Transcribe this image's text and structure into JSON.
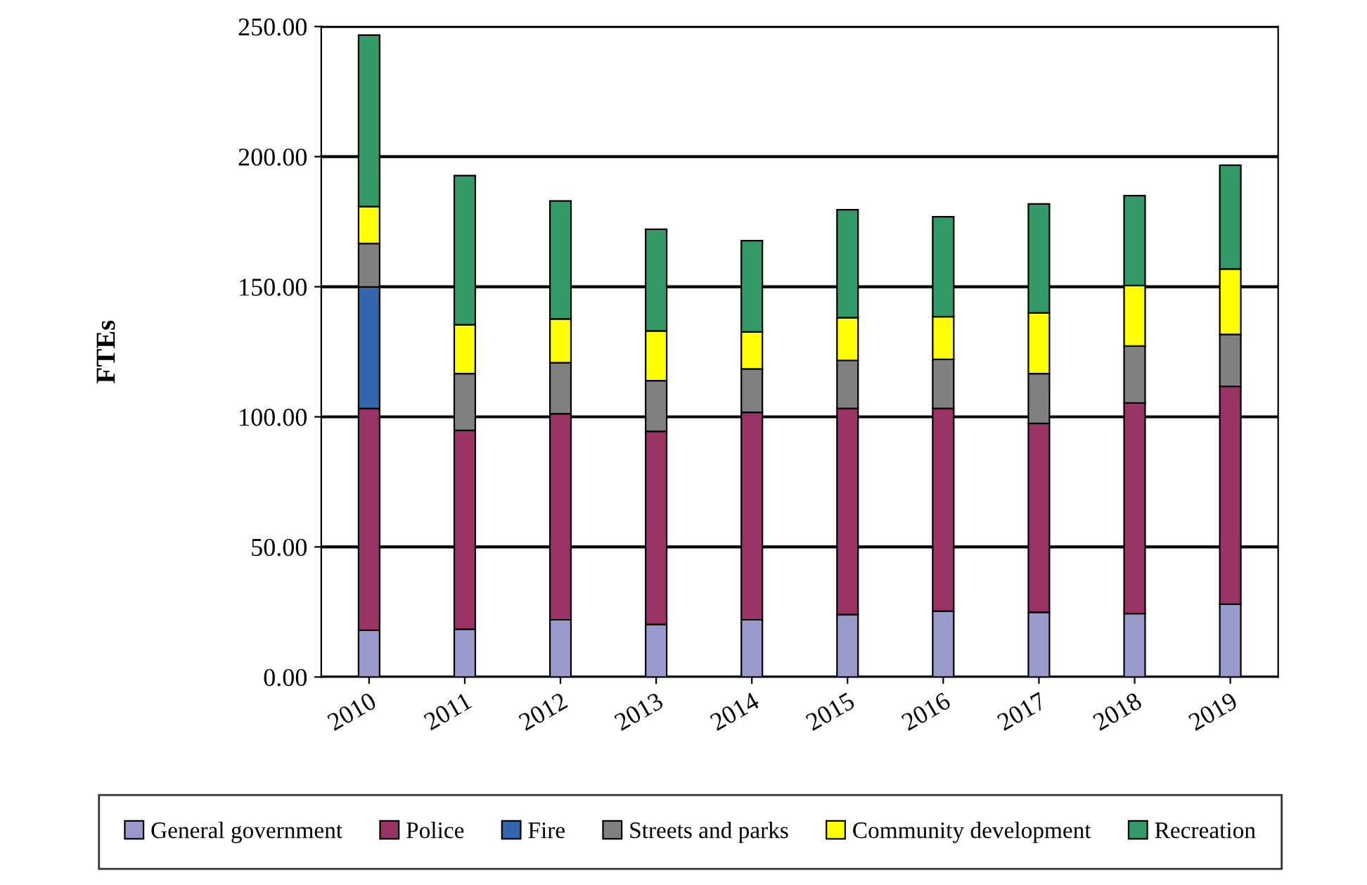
{
  "chart_data": {
    "type": "bar",
    "stacked": true,
    "ylabel": "FTEs",
    "categories": [
      "2010",
      "2011",
      "2012",
      "2013",
      "2014",
      "2015",
      "2016",
      "2017",
      "2018",
      "2019"
    ],
    "series": [
      {
        "name": "General government",
        "color": "#9999cc",
        "values": [
          18.0,
          18.4,
          22.0,
          20.2,
          22.0,
          24.0,
          25.3,
          24.9,
          24.4,
          28.0
        ]
      },
      {
        "name": "Police",
        "color": "#993366",
        "values": [
          85.2,
          76.4,
          79.2,
          74.2,
          79.7,
          79.2,
          77.9,
          72.6,
          80.9,
          83.7
        ]
      },
      {
        "name": "Fire",
        "color": "#3366aa",
        "values": [
          46.7,
          null,
          null,
          null,
          null,
          null,
          null,
          null,
          null,
          null
        ]
      },
      {
        "name": "Streets and parks",
        "color": "#808080",
        "values": [
          16.7,
          21.8,
          19.6,
          19.5,
          16.7,
          18.5,
          18.9,
          19.1,
          21.9,
          20.0
        ]
      },
      {
        "name": "Community development",
        "color": "#ffff00",
        "values": [
          14.2,
          18.8,
          16.8,
          19.1,
          14.2,
          16.4,
          16.4,
          23.3,
          23.3,
          25.1
        ]
      },
      {
        "name": "Recreation",
        "color": "#339966",
        "values": [
          65.9,
          57.3,
          45.4,
          39.1,
          35.1,
          41.5,
          38.4,
          41.9,
          34.5,
          39.9
        ]
      }
    ],
    "ylim": [
      0,
      250
    ],
    "yticks": [
      {
        "value": 0,
        "label": "0.00"
      },
      {
        "value": 50,
        "label": "50.00"
      },
      {
        "value": 100,
        "label": "100.00"
      },
      {
        "value": 150,
        "label": "150.00"
      },
      {
        "value": 200,
        "label": "200.00"
      },
      {
        "value": 250,
        "label": "250.00"
      }
    ],
    "grid": "y",
    "legend": "bottom"
  }
}
